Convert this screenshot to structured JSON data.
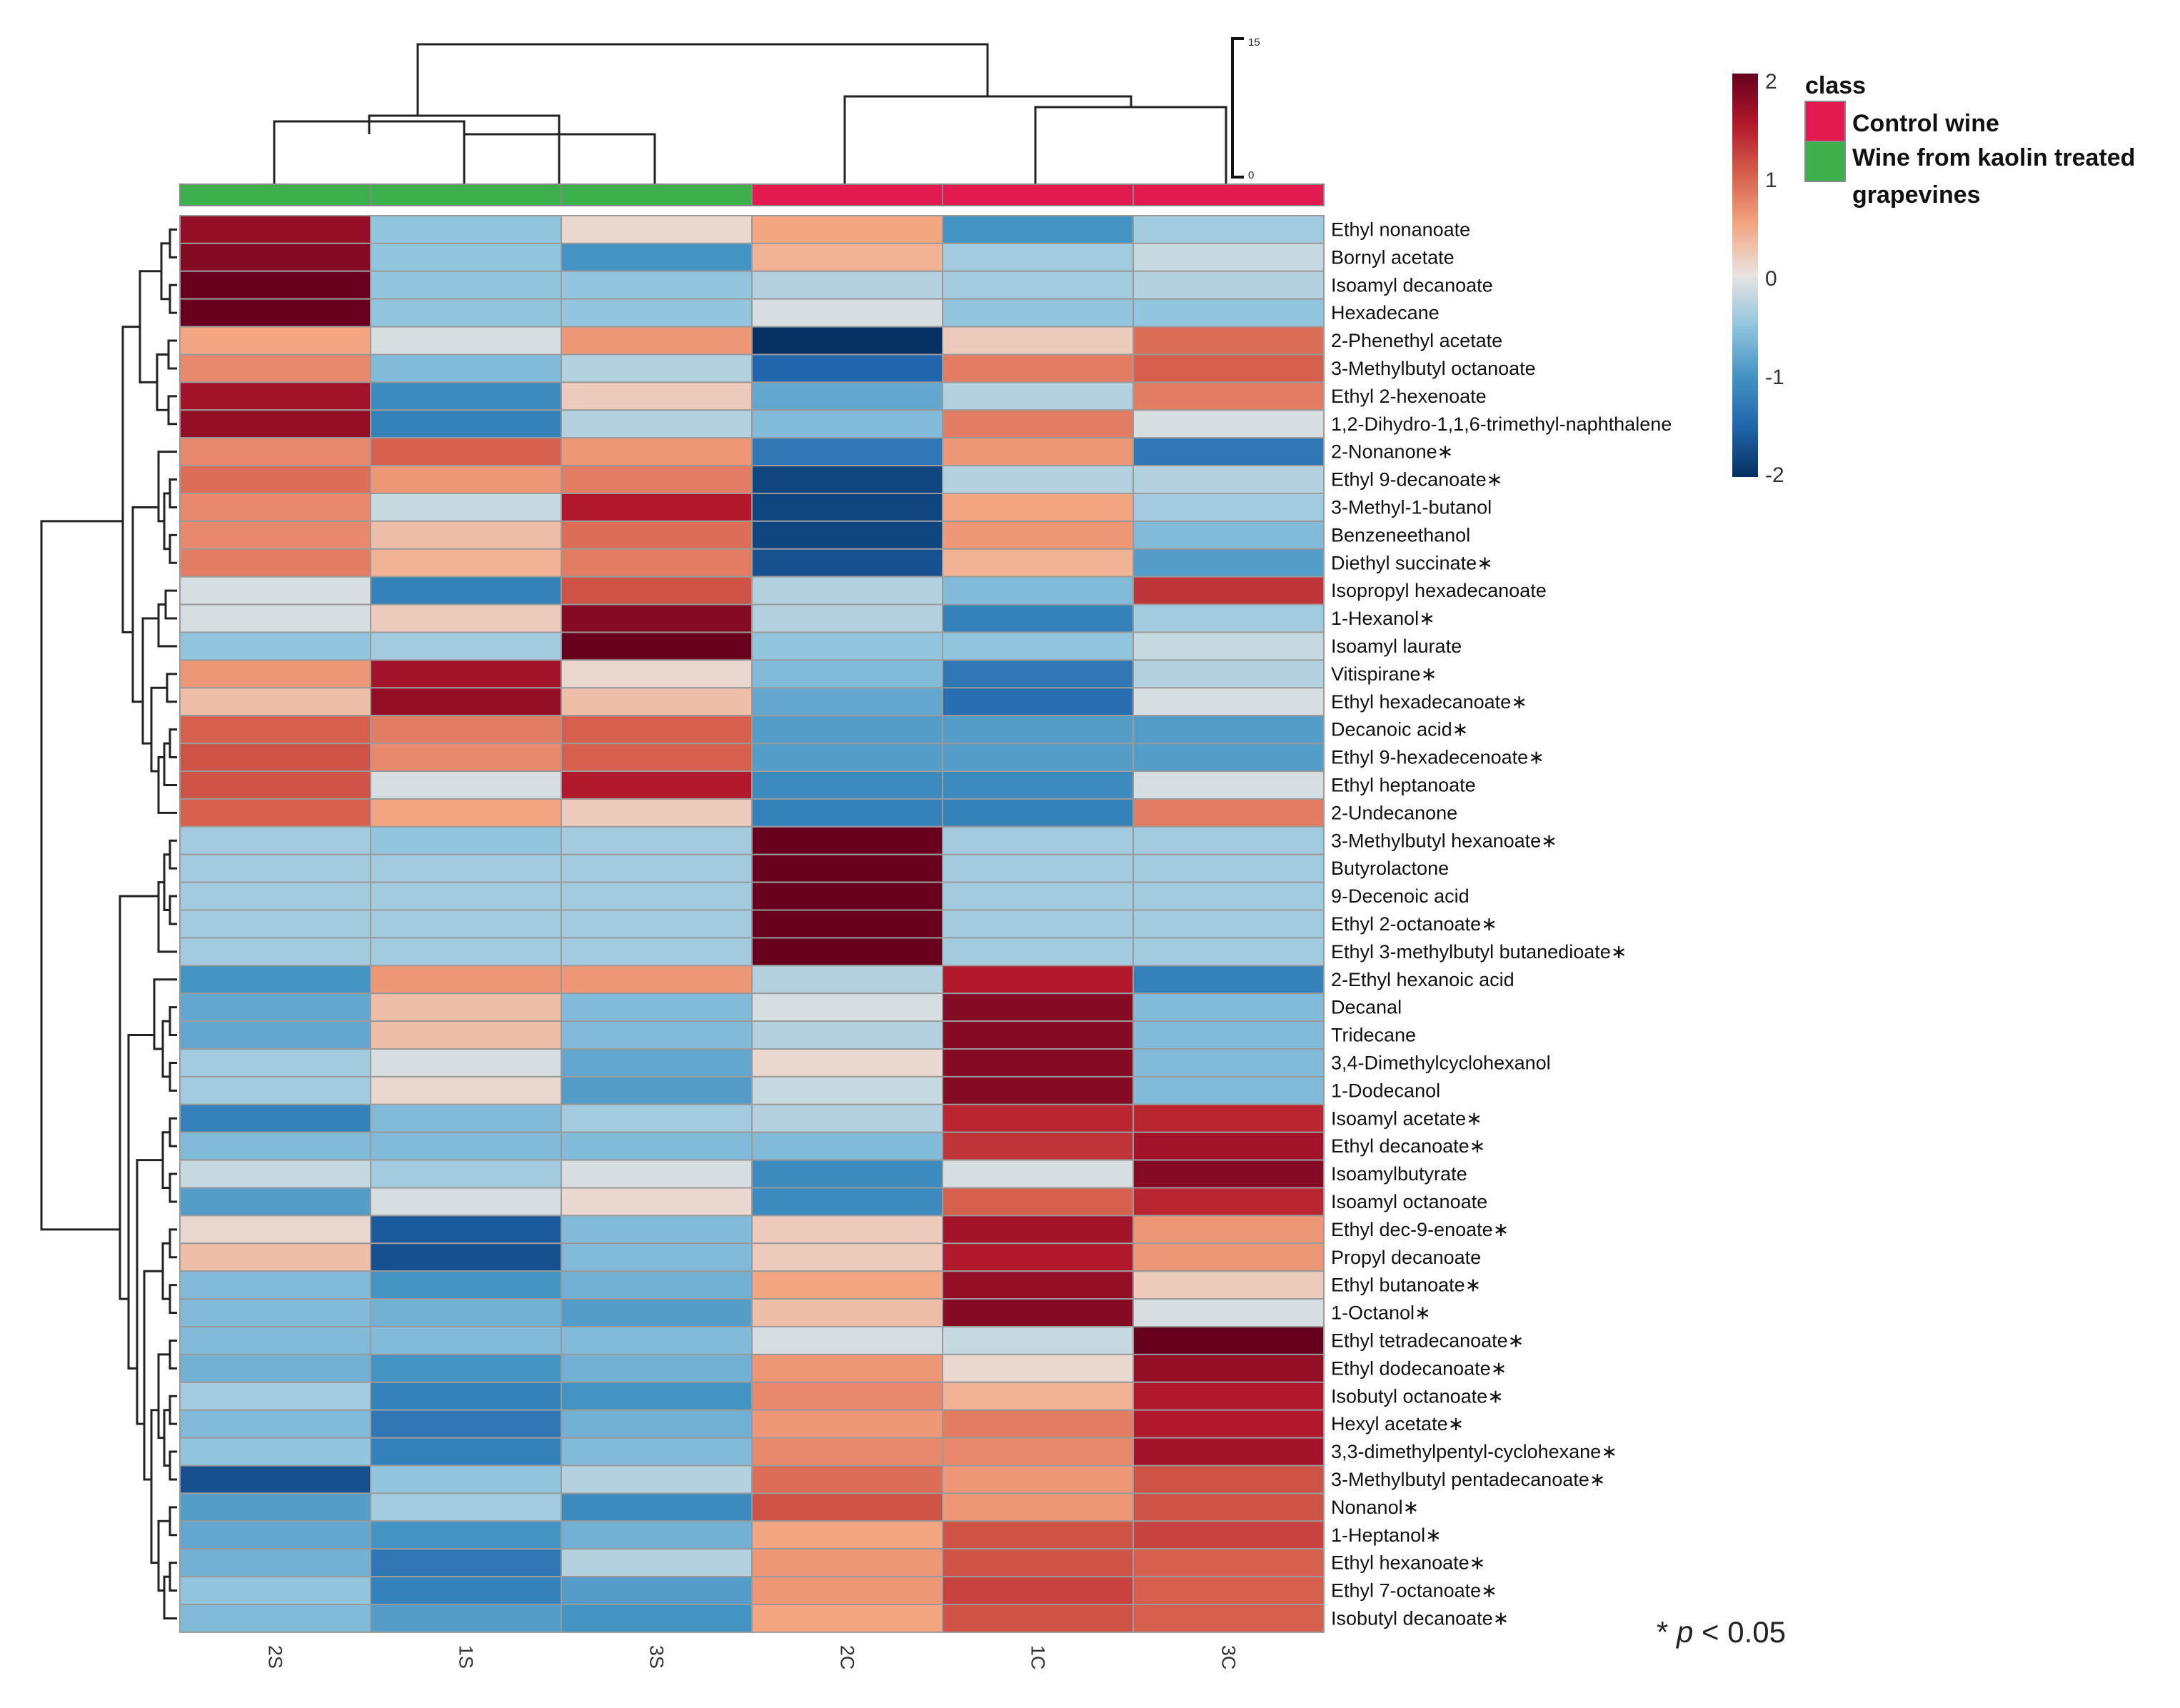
{
  "chart_data": {
    "type": "heatmap",
    "columns": [
      "2S",
      "1S",
      "3S",
      "2C",
      "1C",
      "3C"
    ],
    "column_class": [
      "Wine from kaolin treated grapevines",
      "Wine from kaolin treated grapevines",
      "Wine from kaolin treated grapevines",
      "Control wine",
      "Control wine",
      "Control wine"
    ],
    "rows": [
      "Ethyl nonanoate",
      "Bornyl acetate",
      "Isoamyl decanoate",
      "Hexadecane",
      "2-Phenethyl acetate",
      "3-Methylbutyl octanoate",
      "Ethyl 2-hexenoate",
      "1,2-Dihydro-1,1,6-trimethyl-naphthalene",
      "2-Nonanone∗",
      "Ethyl 9-decanoate∗",
      "3-Methyl-1-butanol",
      "Benzeneethanol",
      "Diethyl succinate∗",
      "Isopropyl hexadecanoate",
      "1-Hexanol∗",
      "Isoamyl laurate",
      "Vitispirane∗",
      "Ethyl hexadecanoate∗",
      "Decanoic acid∗",
      "Ethyl 9-hexadecenoate∗",
      "Ethyl heptanoate",
      "2-Undecanone",
      "3-Methylbutyl hexanoate∗",
      "Butyrolactone",
      "9-Decenoic acid",
      "Ethyl 2-octanoate∗",
      "Ethyl 3-methylbutyl butanedioate∗",
      "2-Ethyl hexanoic acid",
      "Decanal",
      "Tridecane",
      "3,4-Dimethylcyclohexanol",
      "1-Dodecanol",
      "Isoamyl acetate∗",
      "Ethyl decanoate∗",
      "Isoamylbutyrate",
      "Isoamyl octanoate",
      "Ethyl dec-9-enoate∗",
      "Propyl decanoate",
      "Ethyl butanoate∗",
      "1-Octanol∗",
      "Ethyl tetradecanoate∗",
      "Ethyl dodecanoate∗",
      "Isobutyl octanoate∗",
      "Hexyl acetate∗",
      "3,3-dimethylpentyl-cyclohexane∗",
      "3-Methylbutyl pentadecanoate∗",
      "Nonanol∗",
      "1-Heptanol∗",
      "Ethyl hexanoate∗",
      "Ethyl 7-octanoate∗",
      "Isobutyl decanoate∗"
    ],
    "values": [
      [
        1.7,
        -0.5,
        0.1,
        0.5,
        -1.0,
        -0.4
      ],
      [
        1.8,
        -0.5,
        -1.0,
        0.4,
        -0.4,
        -0.2
      ],
      [
        2.0,
        -0.5,
        -0.5,
        -0.3,
        -0.4,
        -0.3
      ],
      [
        2.0,
        -0.5,
        -0.5,
        -0.1,
        -0.5,
        -0.5
      ],
      [
        0.5,
        -0.1,
        0.6,
        -2.0,
        0.2,
        0.9
      ],
      [
        0.7,
        -0.6,
        -0.3,
        -1.5,
        0.8,
        1.0
      ],
      [
        1.6,
        -1.1,
        0.2,
        -0.8,
        -0.3,
        0.8
      ],
      [
        1.7,
        -1.2,
        -0.3,
        -0.6,
        0.8,
        -0.1
      ],
      [
        0.7,
        1.0,
        0.6,
        -1.3,
        0.6,
        -1.3
      ],
      [
        0.9,
        0.6,
        0.8,
        -1.8,
        -0.3,
        -0.3
      ],
      [
        0.7,
        -0.2,
        1.5,
        -1.8,
        0.5,
        -0.4
      ],
      [
        0.7,
        0.3,
        0.9,
        -1.8,
        0.6,
        -0.6
      ],
      [
        0.8,
        0.4,
        0.8,
        -1.7,
        0.4,
        -0.9
      ],
      [
        -0.1,
        -1.2,
        1.1,
        -0.3,
        -0.6,
        1.3
      ],
      [
        -0.1,
        0.2,
        1.8,
        -0.3,
        -1.2,
        -0.4
      ],
      [
        -0.5,
        -0.4,
        2.0,
        -0.5,
        -0.5,
        -0.2
      ],
      [
        0.6,
        1.6,
        0.1,
        -0.6,
        -1.3,
        -0.3
      ],
      [
        0.3,
        1.7,
        0.3,
        -0.8,
        -1.4,
        -0.1
      ],
      [
        1.0,
        0.8,
        1.0,
        -0.9,
        -0.9,
        -0.9
      ],
      [
        1.1,
        0.7,
        1.0,
        -0.9,
        -0.9,
        -0.9
      ],
      [
        1.1,
        -0.1,
        1.5,
        -1.1,
        -1.1,
        -0.1
      ],
      [
        1.0,
        0.5,
        0.2,
        -1.2,
        -1.2,
        0.8
      ],
      [
        -0.4,
        -0.5,
        -0.4,
        2.0,
        -0.4,
        -0.4
      ],
      [
        -0.4,
        -0.4,
        -0.4,
        2.0,
        -0.4,
        -0.4
      ],
      [
        -0.4,
        -0.4,
        -0.4,
        2.0,
        -0.4,
        -0.4
      ],
      [
        -0.4,
        -0.4,
        -0.4,
        2.0,
        -0.4,
        -0.4
      ],
      [
        -0.4,
        -0.4,
        -0.4,
        2.0,
        -0.4,
        -0.4
      ],
      [
        -1.0,
        0.6,
        0.6,
        -0.3,
        1.5,
        -1.2
      ],
      [
        -0.8,
        0.3,
        -0.6,
        -0.1,
        1.8,
        -0.6
      ],
      [
        -0.8,
        0.3,
        -0.6,
        -0.3,
        1.8,
        -0.6
      ],
      [
        -0.4,
        -0.1,
        -0.8,
        0.1,
        1.8,
        -0.6
      ],
      [
        -0.4,
        0.1,
        -0.9,
        -0.2,
        1.8,
        -0.6
      ],
      [
        -1.2,
        -0.6,
        -0.4,
        -0.3,
        1.4,
        1.4
      ],
      [
        -0.6,
        -0.6,
        -0.6,
        -0.6,
        1.3,
        1.6
      ],
      [
        -0.2,
        -0.4,
        -0.1,
        -1.1,
        -0.1,
        1.8
      ],
      [
        -0.9,
        -0.1,
        0.1,
        -1.1,
        1.0,
        1.4
      ],
      [
        0.1,
        -1.6,
        -0.6,
        0.2,
        1.6,
        0.6
      ],
      [
        0.3,
        -1.7,
        -0.6,
        0.2,
        1.5,
        0.6
      ],
      [
        -0.6,
        -1.0,
        -0.7,
        0.5,
        1.7,
        0.2
      ],
      [
        -0.6,
        -0.7,
        -0.9,
        0.3,
        1.8,
        -0.1
      ],
      [
        -0.6,
        -0.6,
        -0.6,
        -0.1,
        -0.2,
        2.0
      ],
      [
        -0.7,
        -1.0,
        -0.7,
        0.6,
        0.1,
        1.7
      ],
      [
        -0.4,
        -1.2,
        -1.0,
        0.7,
        0.4,
        1.5
      ],
      [
        -0.6,
        -1.3,
        -0.7,
        0.6,
        0.8,
        1.5
      ],
      [
        -0.5,
        -1.2,
        -0.6,
        0.7,
        0.7,
        1.6
      ],
      [
        -1.7,
        -0.5,
        -0.3,
        0.9,
        0.6,
        1.1
      ],
      [
        -0.9,
        -0.4,
        -1.1,
        1.1,
        0.6,
        1.1
      ],
      [
        -0.8,
        -1.0,
        -0.7,
        0.5,
        1.1,
        1.2
      ],
      [
        -0.7,
        -1.3,
        -0.3,
        0.6,
        1.1,
        1.0
      ],
      [
        -0.5,
        -1.2,
        -0.9,
        0.6,
        1.2,
        1.0
      ],
      [
        -0.6,
        -0.9,
        -1.0,
        0.5,
        1.1,
        1.0
      ]
    ],
    "color_scale": {
      "min": -2,
      "max": 2,
      "ticks": [
        "2",
        "1",
        "0",
        "-1",
        "-2"
      ],
      "stops": [
        {
          "value": -2,
          "color": "#053061"
        },
        {
          "value": -1.5,
          "color": "#2166ac"
        },
        {
          "value": -1,
          "color": "#4393c3"
        },
        {
          "value": -0.5,
          "color": "#92c5de"
        },
        {
          "value": 0,
          "color": "#e8e4e2"
        },
        {
          "value": 0.5,
          "color": "#f4a582"
        },
        {
          "value": 1,
          "color": "#d6604d"
        },
        {
          "value": 1.5,
          "color": "#b2182b"
        },
        {
          "value": 2,
          "color": "#67001f"
        }
      ]
    },
    "legend": {
      "title": "class",
      "entries": [
        {
          "label": "Control wine",
          "color": "#e31a50"
        },
        {
          "label": "Wine from kaolin treated grapevines",
          "color": "#3cb04a"
        }
      ]
    },
    "dendrogram_scale": {
      "top": "15",
      "bottom": "0"
    },
    "annotation": {
      "star": "* ",
      "p": "p",
      "rest": " < 0.05"
    }
  }
}
